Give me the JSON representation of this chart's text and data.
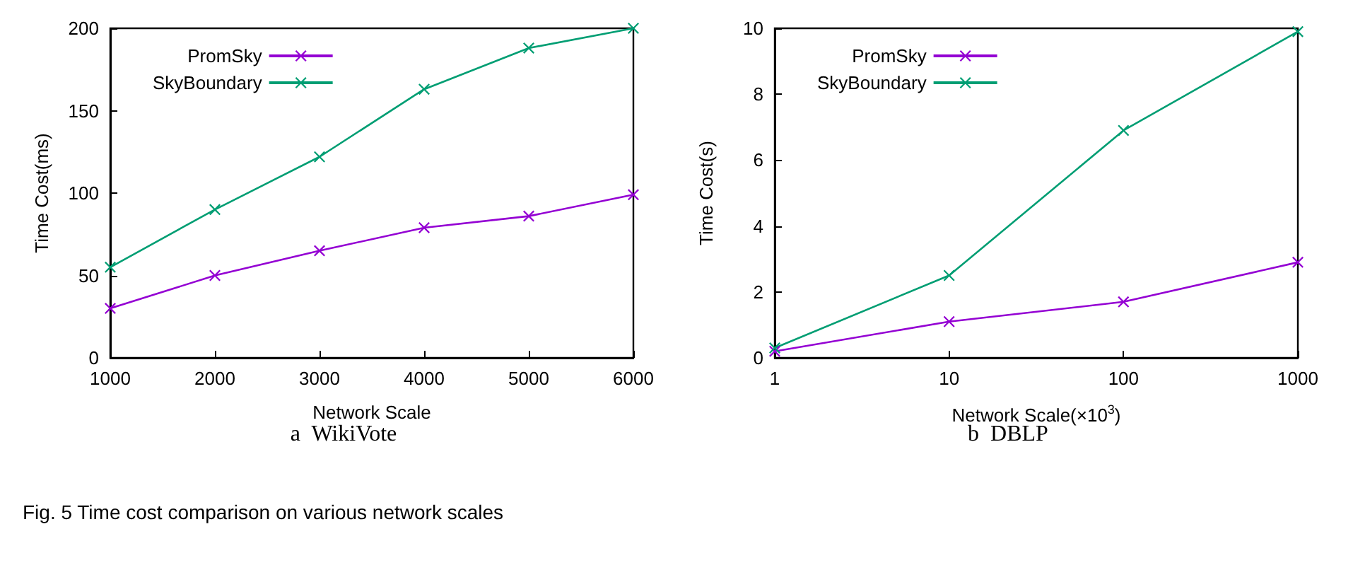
{
  "chart_data": [
    {
      "type": "line",
      "title": "a  WikiVote",
      "xlabel": "Network Scale",
      "ylabel": "Time Cost(ms)",
      "x": [
        1000,
        2000,
        3000,
        4000,
        5000,
        6000
      ],
      "xlim": [
        1000,
        6000
      ],
      "xticks": [
        1000,
        2000,
        3000,
        4000,
        5000,
        6000
      ],
      "ylim": [
        0,
        200
      ],
      "yticks": [
        0,
        50,
        100,
        150,
        200
      ],
      "legend": "top left",
      "marker": "cross",
      "series": [
        {
          "name": "PromSky",
          "color": "#9400d3",
          "values": [
            30,
            50,
            65,
            79,
            86,
            99
          ]
        },
        {
          "name": "SkyBoundary",
          "color": "#009e73",
          "values": [
            55,
            90,
            122,
            163,
            188,
            200
          ]
        }
      ],
      "annotations": [
        "Fig. 5  Time cost comparison on various network scales"
      ]
    },
    {
      "type": "line",
      "title": "b  DBLP",
      "xlabel": "Network Scale(×10$^{3}$)",
      "ylabel": "Time Cost(s)",
      "x": [
        1,
        10,
        100,
        1000
      ],
      "log": "x",
      "xlim": [
        1,
        1000
      ],
      "xticks": [
        1,
        10,
        100,
        1000
      ],
      "ylim": [
        0,
        10
      ],
      "yticks": [
        0,
        2,
        4,
        6,
        8,
        10
      ],
      "legend": "top left",
      "marker": "cross",
      "series": [
        {
          "name": "PromSky",
          "color": "#9400d3",
          "values": [
            0.2,
            1.1,
            1.7,
            2.9
          ]
        },
        {
          "name": "SkyBoundary",
          "color": "#009e73",
          "values": [
            0.3,
            2.5,
            6.9,
            9.9
          ]
        }
      ]
    }
  ]
}
